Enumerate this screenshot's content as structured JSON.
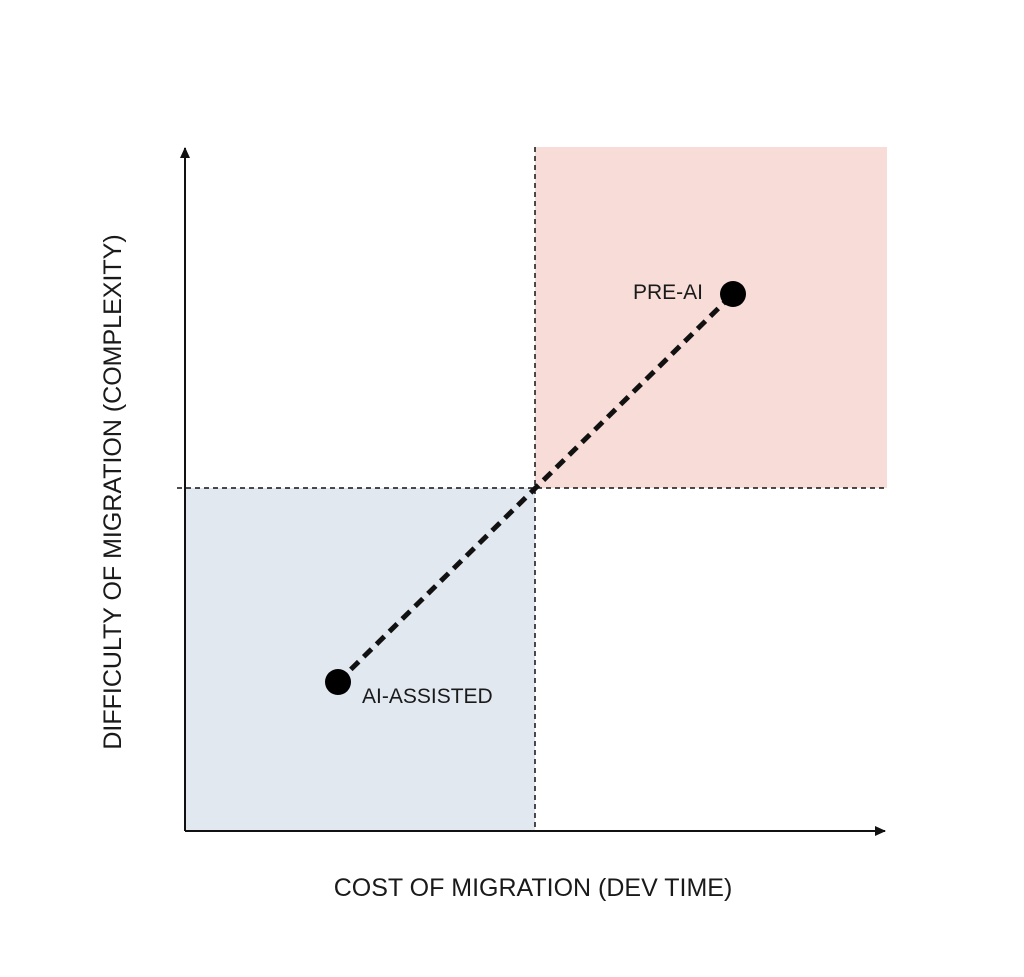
{
  "diagram": {
    "x_axis_label": "COST OF MIGRATION (DEV TIME)",
    "y_axis_label": "DIFFICULTY OF MIGRATION (COMPLEXITY)",
    "points": [
      {
        "id": "pre-ai",
        "label": "PRE-AI"
      },
      {
        "id": "ai-assisted",
        "label": "AI-ASSISTED"
      }
    ],
    "colors": {
      "high_quadrant_fill": "#f7dcd8",
      "low_quadrant_fill": "#e2e8f0",
      "axis": "#111111",
      "point": "#000000"
    }
  }
}
